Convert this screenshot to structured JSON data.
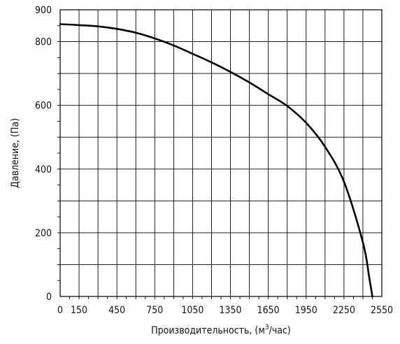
{
  "chart_data": {
    "type": "line",
    "xlabel": "Производительность, (м³/час)",
    "xlabel_main": "Производительность, (м",
    "xlabel_sup": "3",
    "xlabel_tail": "/час)",
    "ylabel": "Давление, (Па)",
    "xlim": [
      0,
      2550
    ],
    "ylim": [
      0,
      900
    ],
    "x_ticks": [
      "0",
      "150",
      "450",
      "750",
      "1050",
      "1350",
      "1650",
      "1950",
      "2250",
      "2550"
    ],
    "y_ticks": [
      "0",
      "200",
      "400",
      "600",
      "800",
      "900"
    ],
    "grid": true,
    "series": [
      {
        "values": [
          [
            0,
            855
          ],
          [
            150,
            852
          ],
          [
            300,
            848
          ],
          [
            450,
            840
          ],
          [
            600,
            828
          ],
          [
            750,
            810
          ],
          [
            900,
            788
          ],
          [
            1050,
            762
          ],
          [
            1200,
            735
          ],
          [
            1350,
            705
          ],
          [
            1500,
            672
          ],
          [
            1650,
            635
          ],
          [
            1800,
            598
          ],
          [
            1950,
            545
          ],
          [
            2100,
            470
          ],
          [
            2250,
            360
          ],
          [
            2400,
            170
          ],
          [
            2450,
            60
          ],
          [
            2475,
            0
          ]
        ]
      }
    ]
  }
}
